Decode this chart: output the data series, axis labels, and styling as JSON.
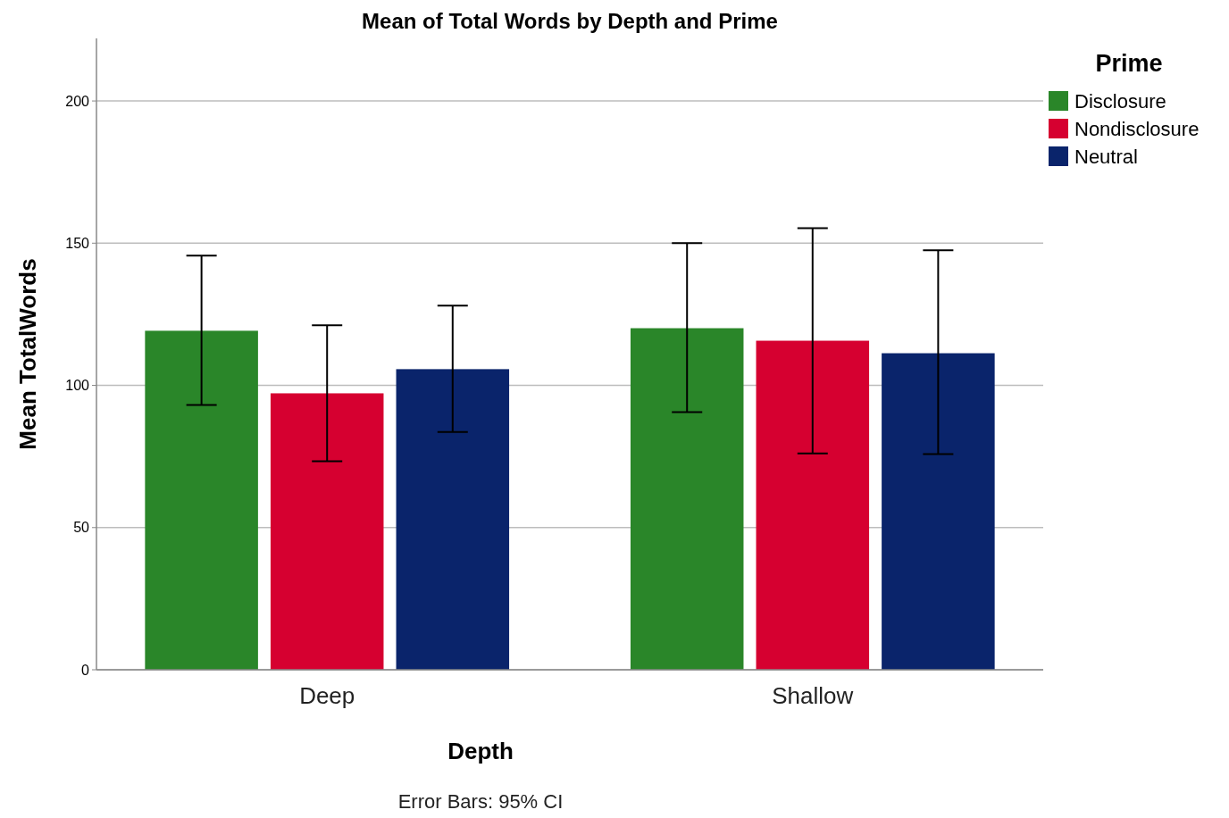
{
  "chart_data": {
    "type": "bar",
    "title": "Mean of Total Words by Depth and Prime",
    "xlabel": "Depth",
    "ylabel": "Mean TotalWords",
    "legend_title": "Prime",
    "categories": [
      "Deep",
      "Shallow"
    ],
    "series": [
      {
        "name": "Disclosure",
        "color": "#2a8629",
        "values": [
          119.2,
          120.1
        ],
        "errors": [
          [
            93.1,
            145.6
          ],
          [
            90.6,
            150
          ]
        ]
      },
      {
        "name": "Nondisclosure",
        "color": "#d60030",
        "values": [
          97.2,
          115.7
        ],
        "errors": [
          [
            73.3,
            121.1
          ],
          [
            76.1,
            155.3
          ]
        ]
      },
      {
        "name": "Neutral",
        "color": "#0a246b",
        "values": [
          105.7,
          111.3
        ],
        "errors": [
          [
            83.6,
            128
          ],
          [
            75.8,
            147.5
          ]
        ]
      }
    ],
    "ylim": [
      0,
      222
    ],
    "yticks": [
      0,
      50,
      100,
      150,
      200
    ],
    "grid": "y",
    "legend": "right",
    "annotations": [
      "Error Bars: 95% CI"
    ]
  }
}
